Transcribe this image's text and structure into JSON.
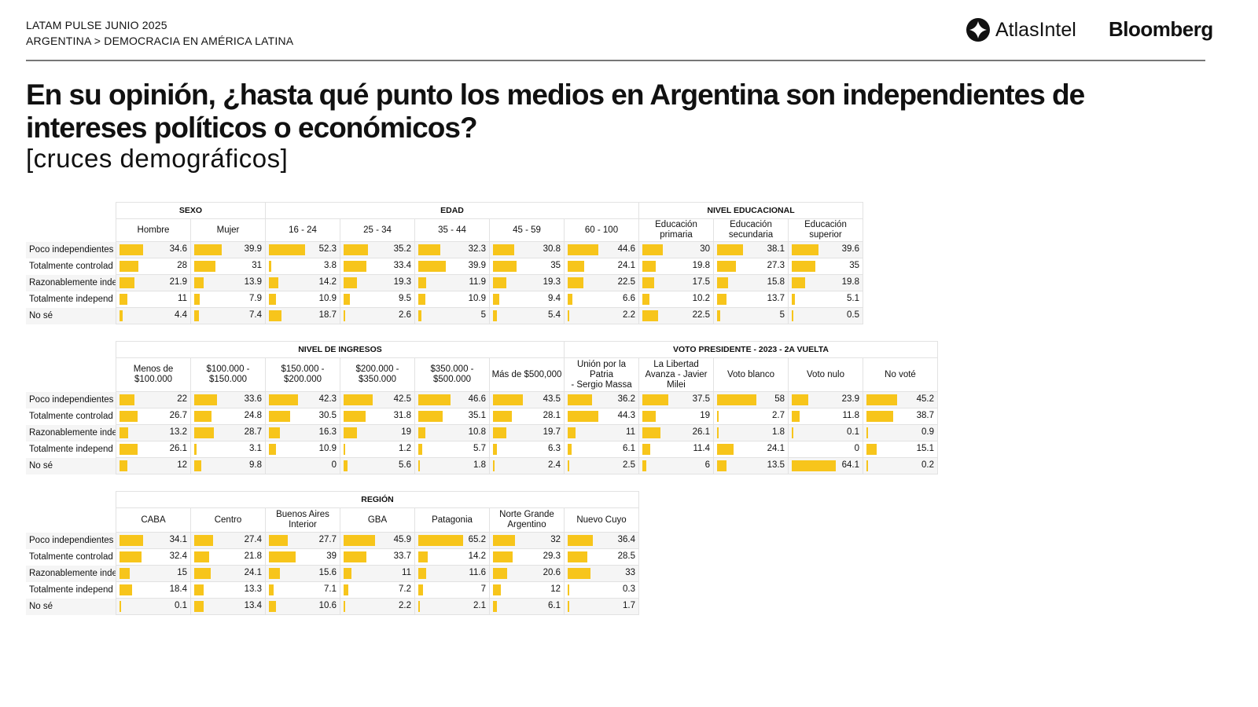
{
  "header": {
    "line1": "LATAM PULSE JUNIO 2025",
    "line2": "ARGENTINA > DEMOCRACIA EN AMÉRICA LATINA",
    "logo_atlas": "AtlasIntel",
    "logo_bloomberg": "Bloomberg"
  },
  "title": "En su opinión, ¿hasta qué punto los medios en Argentina son independientes de intereses políticos o económicos?",
  "subtitle": "[cruces demográficos]",
  "colors": {
    "bar": "#f7c51b"
  },
  "chart_data": {
    "type": "table",
    "row_labels": [
      "Poco independientes",
      "Totalmente controlad",
      "Razonablemente inde",
      "Totalmente independ",
      "No sé"
    ],
    "tables": [
      {
        "groups": [
          {
            "label": "SEXO",
            "span": 2
          },
          {
            "label": "EDAD",
            "span": 5
          },
          {
            "label": "NIVEL EDUCACIONAL",
            "span": 3
          }
        ],
        "columns": [
          "Hombre",
          "Mujer",
          "16 - 24",
          "25 - 34",
          "35 - 44",
          "45 - 59",
          "60 - 100",
          "Educación\nprimaria",
          "Educación\nsecundaria",
          "Educación\nsuperior"
        ],
        "values": [
          [
            34.6,
            39.9,
            52.3,
            35.2,
            32.3,
            30.8,
            44.6,
            30,
            38.1,
            39.6
          ],
          [
            28,
            31,
            3.8,
            33.4,
            39.9,
            35,
            24.1,
            19.8,
            27.3,
            35
          ],
          [
            21.9,
            13.9,
            14.2,
            19.3,
            11.9,
            19.3,
            22.5,
            17.5,
            15.8,
            19.8
          ],
          [
            11,
            7.9,
            10.9,
            9.5,
            10.9,
            9.4,
            6.6,
            10.2,
            13.7,
            5.1
          ],
          [
            4.4,
            7.4,
            18.7,
            2.6,
            5,
            5.4,
            2.2,
            22.5,
            5,
            0.5
          ]
        ]
      },
      {
        "groups": [
          {
            "label": "NIVEL DE INGRESOS",
            "span": 6
          },
          {
            "label": "VOTO PRESIDENTE - 2023 - 2A VUELTA",
            "span": 5
          }
        ],
        "columns": [
          "Menos de\n$100.000",
          "$100.000 -\n$150.000",
          "$150.000 -\n$200.000",
          "$200.000 -\n$350.000",
          "$350.000 -\n$500.000",
          "Más de $500,000",
          "Unión por la Patria\n- Sergio Massa",
          "La Libertad\nAvanza - Javier\nMilei",
          "Voto blanco",
          "Voto nulo",
          "No voté"
        ],
        "values": [
          [
            22,
            33.6,
            42.3,
            42.5,
            46.6,
            43.5,
            36.2,
            37.5,
            58,
            23.9,
            45.2
          ],
          [
            26.7,
            24.8,
            30.5,
            31.8,
            35.1,
            28.1,
            44.3,
            19,
            2.7,
            11.8,
            38.7
          ],
          [
            13.2,
            28.7,
            16.3,
            19,
            10.8,
            19.7,
            11,
            26.1,
            1.8,
            0.1,
            0.9
          ],
          [
            26.1,
            3.1,
            10.9,
            1.2,
            5.7,
            6.3,
            6.1,
            11.4,
            24.1,
            0,
            15.1
          ],
          [
            12,
            9.8,
            0,
            5.6,
            1.8,
            2.4,
            2.5,
            6,
            13.5,
            64.1,
            0.2
          ]
        ]
      },
      {
        "groups": [
          {
            "label": "REGIÓN",
            "span": 7
          }
        ],
        "columns": [
          "CABA",
          "Centro",
          "Buenos Aires\nInterior",
          "GBA",
          "Patagonia",
          "Norte Grande\nArgentino",
          "Nuevo Cuyo"
        ],
        "values": [
          [
            34.1,
            27.4,
            27.7,
            45.9,
            65.2,
            32,
            36.4
          ],
          [
            32.4,
            21.8,
            39,
            33.7,
            14.2,
            29.3,
            28.5
          ],
          [
            15,
            24.1,
            15.6,
            11,
            11.6,
            20.6,
            33
          ],
          [
            18.4,
            13.3,
            7.1,
            7.2,
            7,
            12,
            0.3
          ],
          [
            0.1,
            13.4,
            10.6,
            2.2,
            2.1,
            6.1,
            1.7
          ]
        ]
      }
    ]
  }
}
